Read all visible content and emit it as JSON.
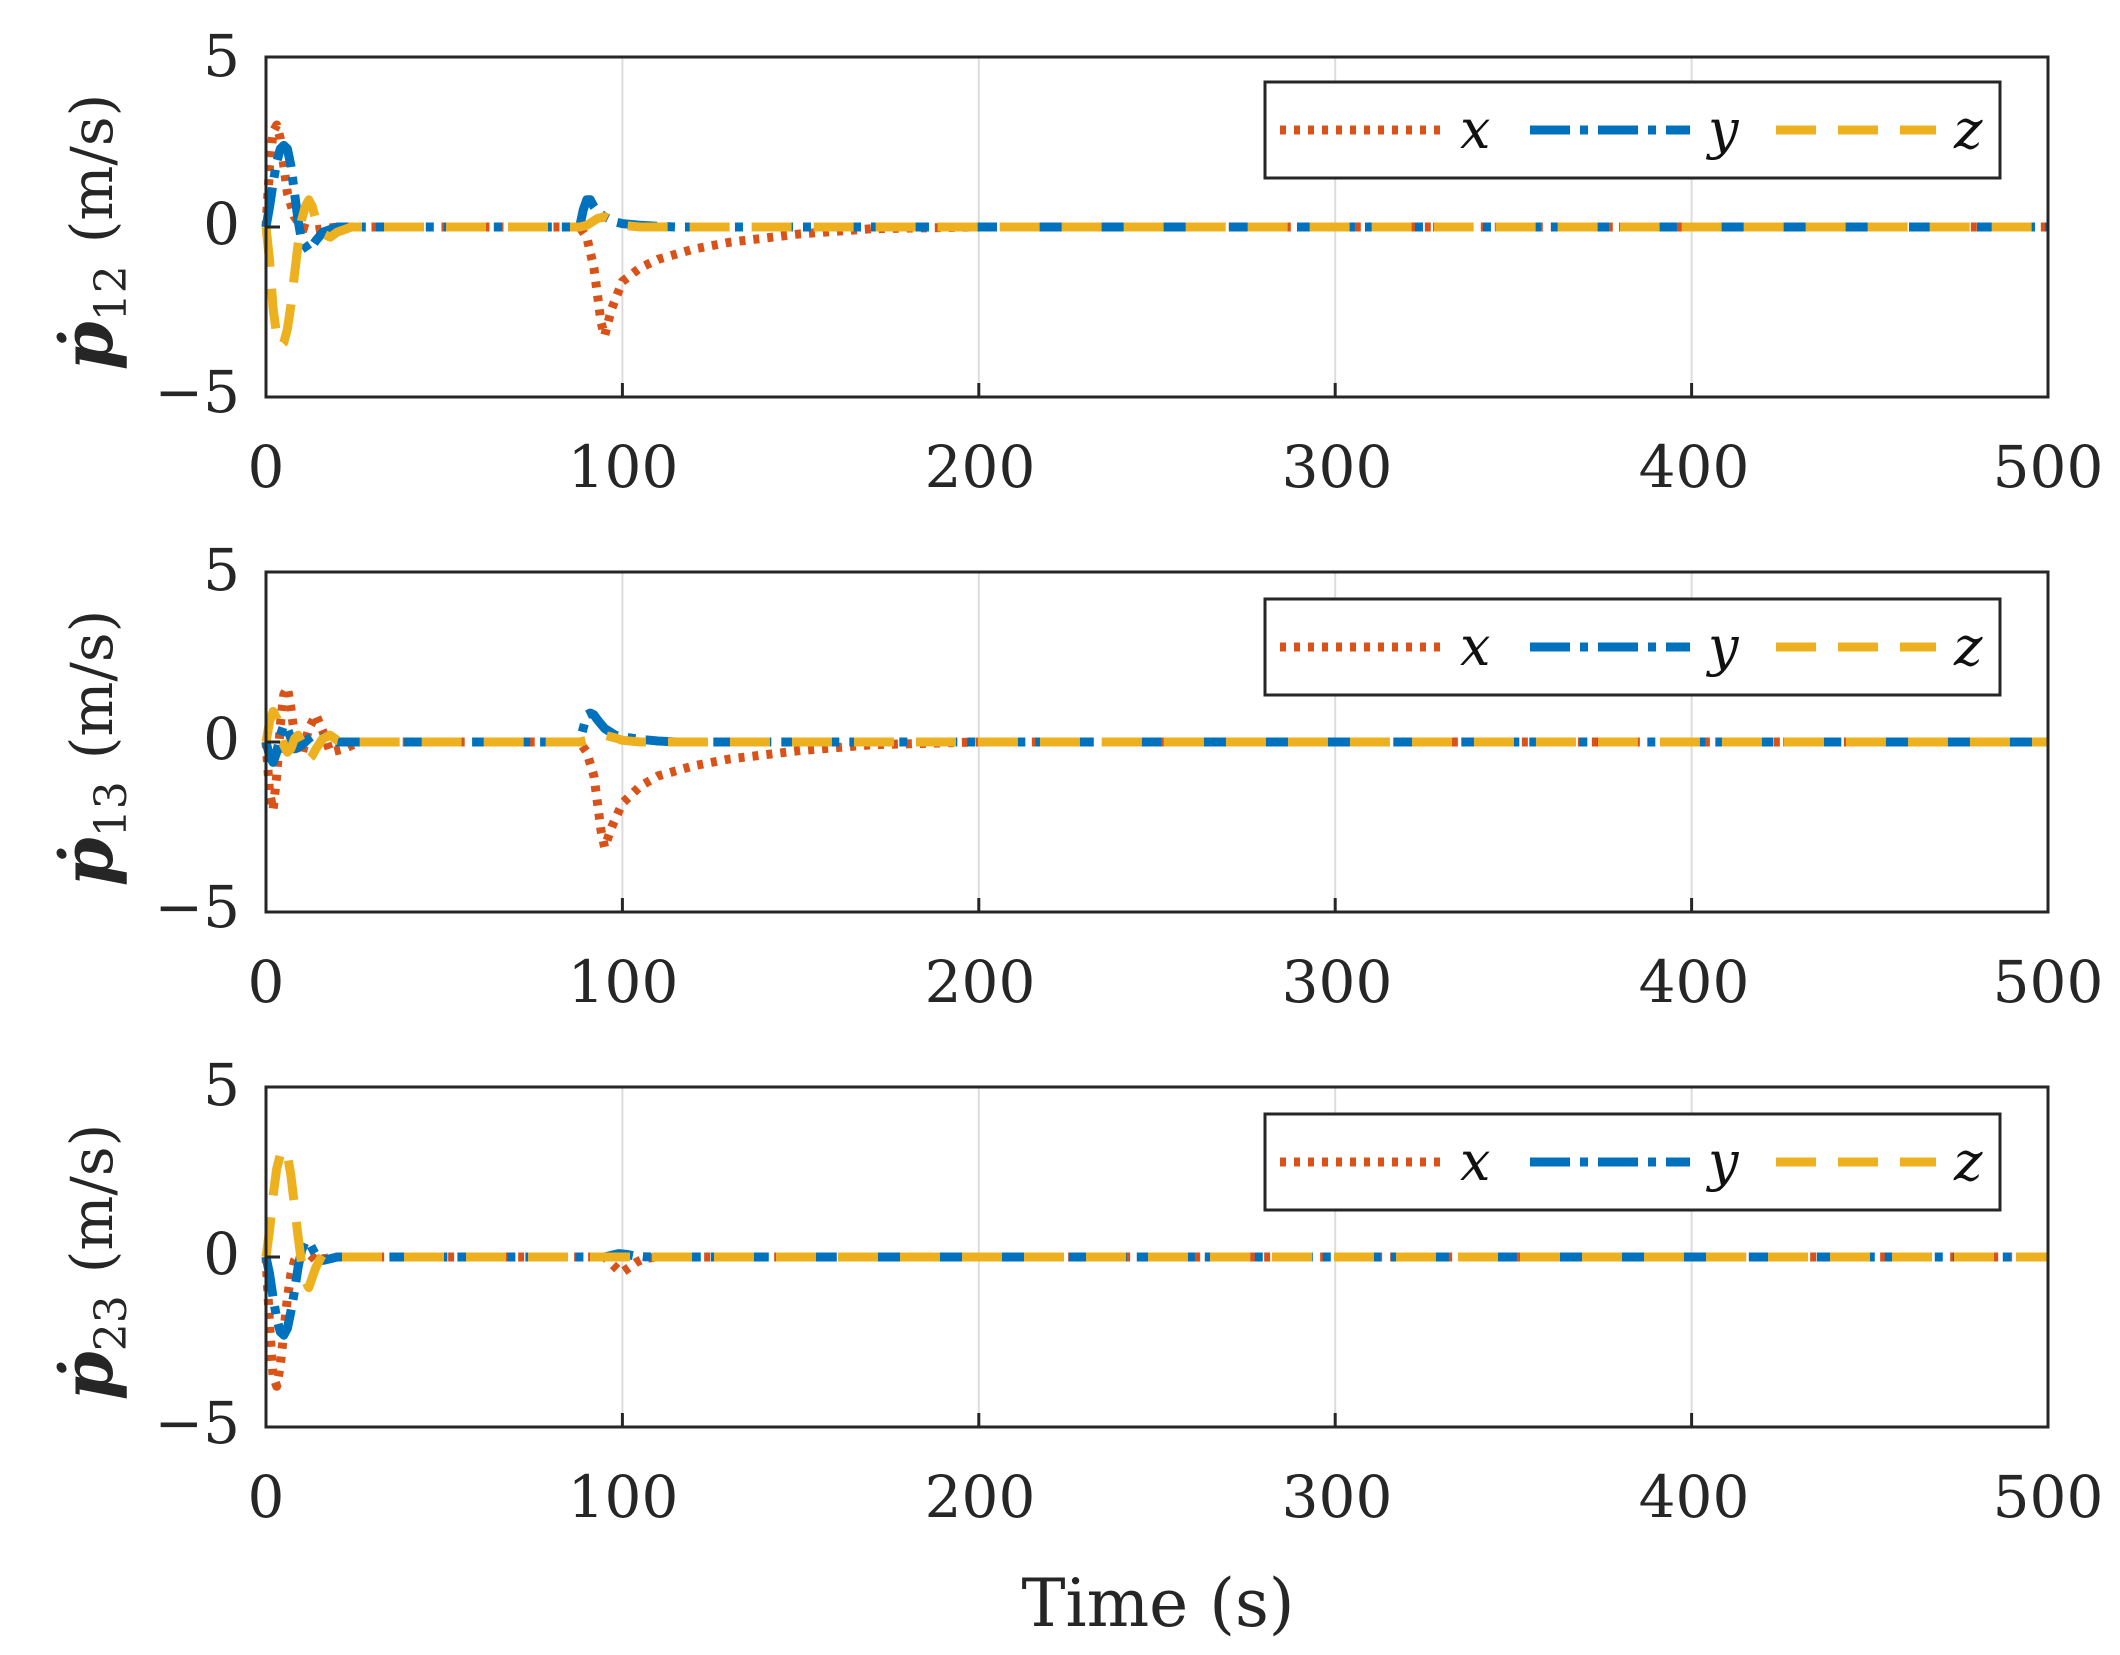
{
  "chart_data": {
    "type": "line",
    "xlabel": "Time (s)",
    "xlim": [
      0,
      500
    ],
    "xticks": [
      "0",
      "100",
      "200",
      "300",
      "400",
      "500"
    ],
    "grid": "vertical",
    "legend_position": "top-right",
    "colors": {
      "x": "#D95319",
      "y": "#0072BD",
      "z": "#EDB120"
    },
    "axis_color": "#262626",
    "grid_color": "#dcdcdc",
    "panels": [
      {
        "ylabel_symbol": "ṗ",
        "ylabel_subscript": "12",
        "ylabel_unit": "(m/s)",
        "ylim": [
          -5,
          5
        ],
        "yticks": [
          "5",
          "0",
          "−5"
        ],
        "legend": [
          "x",
          "y",
          "z"
        ],
        "series": [
          {
            "name": "x",
            "x": [
              0,
              1,
              2,
              3,
              4,
              5,
              6,
              8,
              10,
              13,
              16,
              20,
              25,
              30,
              88,
              90,
              92,
              93,
              94,
              95,
              97,
              100,
              105,
              110,
              120,
              130,
              150,
              170,
              200,
              500
            ],
            "y": [
              0,
              1.8,
              2.8,
              3.0,
              2.6,
              1.8,
              1.0,
              0.3,
              0.0,
              -0.1,
              -0.05,
              0,
              0,
              0,
              0,
              -0.3,
              -1.2,
              -2.0,
              -2.8,
              -3.2,
              -2.4,
              -1.6,
              -1.2,
              -0.95,
              -0.65,
              -0.45,
              -0.2,
              -0.05,
              0,
              0
            ]
          },
          {
            "name": "y",
            "x": [
              0,
              1,
              2,
              3,
              4,
              5,
              6,
              7,
              8,
              9,
              10,
              12,
              14,
              16,
              20,
              25,
              30,
              88,
              89,
              90,
              91,
              92,
              93,
              95,
              98,
              100,
              105,
              110,
              115,
              120,
              500
            ],
            "y": [
              0,
              0.6,
              1.3,
              1.9,
              2.3,
              2.4,
              2.3,
              1.8,
              1.0,
              0.2,
              -0.4,
              -0.7,
              -0.4,
              -0.15,
              0,
              0,
              0,
              0,
              0.5,
              0.8,
              0.8,
              0.6,
              0.45,
              0.3,
              0.15,
              0.1,
              0.05,
              0.02,
              0,
              0,
              0
            ]
          },
          {
            "name": "z",
            "x": [
              0,
              1,
              2,
              3,
              4,
              5,
              6,
              7,
              8,
              9,
              10,
              11,
              12,
              13,
              14,
              16,
              18,
              20,
              24,
              30,
              88,
              90,
              93,
              95,
              98,
              100,
              105,
              110,
              500
            ],
            "y": [
              0,
              -1.0,
              -2.4,
              -3.2,
              -3.5,
              -3.4,
              -3.0,
              -2.3,
              -1.4,
              -0.5,
              0.2,
              0.6,
              0.8,
              0.6,
              0.2,
              -0.2,
              -0.3,
              -0.15,
              0,
              0,
              0,
              0.05,
              0.25,
              0.3,
              0.15,
              0.05,
              0,
              0,
              0
            ]
          }
        ]
      },
      {
        "ylabel_symbol": "ṗ",
        "ylabel_subscript": "13",
        "ylabel_unit": "(m/s)",
        "ylim": [
          -5,
          5
        ],
        "yticks": [
          "5",
          "0",
          "−5"
        ],
        "legend": [
          "x",
          "y",
          "z"
        ],
        "series": [
          {
            "name": "x",
            "x": [
              0,
              1,
              2,
              3,
              4,
              5,
              6,
              7,
              8,
              10,
              12,
              14,
              16,
              18,
              22,
              26,
              30,
              88,
              90,
              92,
              93,
              94,
              95,
              97,
              100,
              105,
              110,
              120,
              130,
              150,
              170,
              200,
              500
            ],
            "y": [
              0,
              -1.5,
              -2.0,
              -1.0,
              0.5,
              1.4,
              1.6,
              1.0,
              0.2,
              -0.4,
              0.4,
              0.8,
              0.3,
              -0.3,
              -0.2,
              0,
              0,
              0,
              -0.3,
              -1.0,
              -1.8,
              -2.6,
              -3.1,
              -2.5,
              -1.8,
              -1.3,
              -1.0,
              -0.7,
              -0.5,
              -0.25,
              -0.08,
              0,
              0
            ]
          },
          {
            "name": "y",
            "x": [
              0,
              1,
              2,
              3,
              4,
              5,
              6,
              7,
              8,
              10,
              12,
              14,
              16,
              20,
              25,
              30,
              88,
              89,
              90,
              91,
              92,
              93,
              95,
              98,
              100,
              105,
              110,
              115,
              120,
              500
            ],
            "y": [
              0,
              -0.4,
              -0.6,
              -0.3,
              0.2,
              0.5,
              0.4,
              0.1,
              -0.2,
              -0.1,
              0.1,
              0.25,
              0.1,
              0,
              0,
              0,
              0,
              0.4,
              0.8,
              0.85,
              0.8,
              0.65,
              0.4,
              0.2,
              0.15,
              0.08,
              0.03,
              0,
              0,
              0
            ]
          },
          {
            "name": "z",
            "x": [
              0,
              1,
              2,
              3,
              4,
              5,
              6,
              7,
              8,
              9,
              10,
              11,
              12,
              13,
              14,
              16,
              18,
              20,
              24,
              30,
              88,
              90,
              93,
              95,
              98,
              100,
              105,
              110,
              500
            ],
            "y": [
              0,
              0.6,
              0.9,
              0.7,
              0.3,
              -0.1,
              -0.3,
              -0.2,
              0.1,
              0.2,
              0.0,
              -0.3,
              -0.5,
              -0.4,
              -0.2,
              0.1,
              0.2,
              0.05,
              0,
              0,
              0,
              0.05,
              0.15,
              0.2,
              0.12,
              0.05,
              0,
              0,
              0
            ]
          }
        ]
      },
      {
        "ylabel_symbol": "ṗ",
        "ylabel_subscript": "23",
        "ylabel_unit": "(m/s)",
        "ylim": [
          -5,
          5
        ],
        "yticks": [
          "5",
          "0",
          "−5"
        ],
        "legend": [
          "x",
          "y",
          "z"
        ],
        "series": [
          {
            "name": "x",
            "x": [
              0,
              1,
              2,
              3,
              4,
              5,
              6,
              7,
              8,
              10,
              12,
              14,
              16,
              20,
              25,
              30,
              95,
              97,
              99,
              100,
              102,
              104,
              106,
              110,
              500
            ],
            "y": [
              0,
              -2.0,
              -3.5,
              -3.8,
              -3.2,
              -2.2,
              -1.2,
              -0.5,
              -0.1,
              0.2,
              0.1,
              -0.1,
              -0.05,
              0,
              0,
              0,
              0,
              -0.2,
              -0.4,
              -0.45,
              -0.3,
              -0.15,
              -0.05,
              0,
              0
            ]
          },
          {
            "name": "y",
            "x": [
              0,
              1,
              2,
              3,
              4,
              5,
              6,
              7,
              8,
              9,
              10,
              11,
              12,
              13,
              14,
              16,
              18,
              20,
              25,
              30,
              95,
              97,
              99,
              101,
              103,
              106,
              110,
              500
            ],
            "y": [
              0,
              -0.5,
              -1.2,
              -1.8,
              -2.2,
              -2.3,
              -2.1,
              -1.6,
              -1.0,
              -0.3,
              0.2,
              0.45,
              0.45,
              0.25,
              0.05,
              -0.1,
              -0.05,
              0,
              0,
              0,
              0,
              0.05,
              0.1,
              0.08,
              0.04,
              0.01,
              0,
              0
            ]
          },
          {
            "name": "z",
            "x": [
              0,
              1,
              2,
              3,
              4,
              5,
              6,
              7,
              8,
              9,
              10,
              11,
              12,
              13,
              14,
              16,
              18,
              20,
              25,
              30,
              500
            ],
            "y": [
              0,
              0.8,
              1.8,
              2.6,
              3.0,
              3.2,
              3.0,
              2.4,
              1.5,
              0.6,
              -0.2,
              -0.7,
              -0.9,
              -0.6,
              -0.3,
              0.1,
              0.1,
              0,
              0,
              0,
              0
            ]
          }
        ]
      }
    ]
  }
}
